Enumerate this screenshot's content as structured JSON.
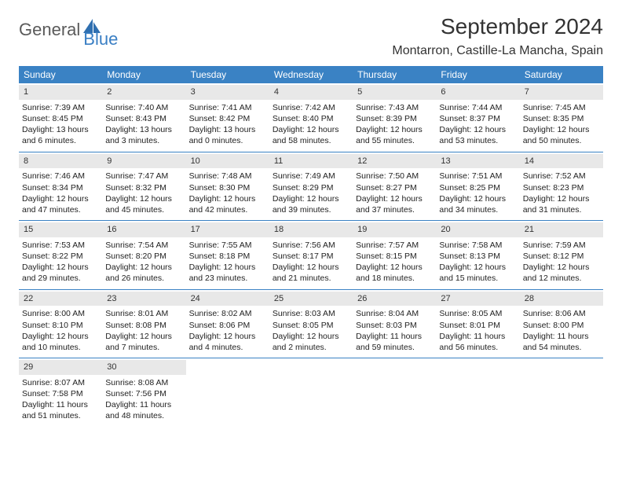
{
  "brand": {
    "word1": "General",
    "word2": "Blue",
    "word1_color": "#5a5a5a",
    "word2_color": "#3a7fc4",
    "icon_color": "#2f6fb0"
  },
  "title": "September 2024",
  "location": "Montarron, Castille-La Mancha, Spain",
  "colors": {
    "header_bg": "#3a82c4",
    "header_text": "#ffffff",
    "daynum_bg": "#e8e8e8",
    "row_border": "#3a82c4",
    "body_text": "#222222",
    "page_bg": "#ffffff"
  },
  "typography": {
    "title_fontsize": 28,
    "location_fontsize": 16,
    "weekday_fontsize": 12,
    "daynum_fontsize": 11,
    "cell_fontsize": 10.5
  },
  "weekdays": [
    "Sunday",
    "Monday",
    "Tuesday",
    "Wednesday",
    "Thursday",
    "Friday",
    "Saturday"
  ],
  "weeks": [
    [
      {
        "n": "1",
        "sunrise": "7:39 AM",
        "sunset": "8:45 PM",
        "daylight": "13 hours and 6 minutes."
      },
      {
        "n": "2",
        "sunrise": "7:40 AM",
        "sunset": "8:43 PM",
        "daylight": "13 hours and 3 minutes."
      },
      {
        "n": "3",
        "sunrise": "7:41 AM",
        "sunset": "8:42 PM",
        "daylight": "13 hours and 0 minutes."
      },
      {
        "n": "4",
        "sunrise": "7:42 AM",
        "sunset": "8:40 PM",
        "daylight": "12 hours and 58 minutes."
      },
      {
        "n": "5",
        "sunrise": "7:43 AM",
        "sunset": "8:39 PM",
        "daylight": "12 hours and 55 minutes."
      },
      {
        "n": "6",
        "sunrise": "7:44 AM",
        "sunset": "8:37 PM",
        "daylight": "12 hours and 53 minutes."
      },
      {
        "n": "7",
        "sunrise": "7:45 AM",
        "sunset": "8:35 PM",
        "daylight": "12 hours and 50 minutes."
      }
    ],
    [
      {
        "n": "8",
        "sunrise": "7:46 AM",
        "sunset": "8:34 PM",
        "daylight": "12 hours and 47 minutes."
      },
      {
        "n": "9",
        "sunrise": "7:47 AM",
        "sunset": "8:32 PM",
        "daylight": "12 hours and 45 minutes."
      },
      {
        "n": "10",
        "sunrise": "7:48 AM",
        "sunset": "8:30 PM",
        "daylight": "12 hours and 42 minutes."
      },
      {
        "n": "11",
        "sunrise": "7:49 AM",
        "sunset": "8:29 PM",
        "daylight": "12 hours and 39 minutes."
      },
      {
        "n": "12",
        "sunrise": "7:50 AM",
        "sunset": "8:27 PM",
        "daylight": "12 hours and 37 minutes."
      },
      {
        "n": "13",
        "sunrise": "7:51 AM",
        "sunset": "8:25 PM",
        "daylight": "12 hours and 34 minutes."
      },
      {
        "n": "14",
        "sunrise": "7:52 AM",
        "sunset": "8:23 PM",
        "daylight": "12 hours and 31 minutes."
      }
    ],
    [
      {
        "n": "15",
        "sunrise": "7:53 AM",
        "sunset": "8:22 PM",
        "daylight": "12 hours and 29 minutes."
      },
      {
        "n": "16",
        "sunrise": "7:54 AM",
        "sunset": "8:20 PM",
        "daylight": "12 hours and 26 minutes."
      },
      {
        "n": "17",
        "sunrise": "7:55 AM",
        "sunset": "8:18 PM",
        "daylight": "12 hours and 23 minutes."
      },
      {
        "n": "18",
        "sunrise": "7:56 AM",
        "sunset": "8:17 PM",
        "daylight": "12 hours and 21 minutes."
      },
      {
        "n": "19",
        "sunrise": "7:57 AM",
        "sunset": "8:15 PM",
        "daylight": "12 hours and 18 minutes."
      },
      {
        "n": "20",
        "sunrise": "7:58 AM",
        "sunset": "8:13 PM",
        "daylight": "12 hours and 15 minutes."
      },
      {
        "n": "21",
        "sunrise": "7:59 AM",
        "sunset": "8:12 PM",
        "daylight": "12 hours and 12 minutes."
      }
    ],
    [
      {
        "n": "22",
        "sunrise": "8:00 AM",
        "sunset": "8:10 PM",
        "daylight": "12 hours and 10 minutes."
      },
      {
        "n": "23",
        "sunrise": "8:01 AM",
        "sunset": "8:08 PM",
        "daylight": "12 hours and 7 minutes."
      },
      {
        "n": "24",
        "sunrise": "8:02 AM",
        "sunset": "8:06 PM",
        "daylight": "12 hours and 4 minutes."
      },
      {
        "n": "25",
        "sunrise": "8:03 AM",
        "sunset": "8:05 PM",
        "daylight": "12 hours and 2 minutes."
      },
      {
        "n": "26",
        "sunrise": "8:04 AM",
        "sunset": "8:03 PM",
        "daylight": "11 hours and 59 minutes."
      },
      {
        "n": "27",
        "sunrise": "8:05 AM",
        "sunset": "8:01 PM",
        "daylight": "11 hours and 56 minutes."
      },
      {
        "n": "28",
        "sunrise": "8:06 AM",
        "sunset": "8:00 PM",
        "daylight": "11 hours and 54 minutes."
      }
    ],
    [
      {
        "n": "29",
        "sunrise": "8:07 AM",
        "sunset": "7:58 PM",
        "daylight": "11 hours and 51 minutes."
      },
      {
        "n": "30",
        "sunrise": "8:08 AM",
        "sunset": "7:56 PM",
        "daylight": "11 hours and 48 minutes."
      },
      null,
      null,
      null,
      null,
      null
    ]
  ],
  "labels": {
    "sunrise": "Sunrise:",
    "sunset": "Sunset:",
    "daylight": "Daylight:"
  }
}
